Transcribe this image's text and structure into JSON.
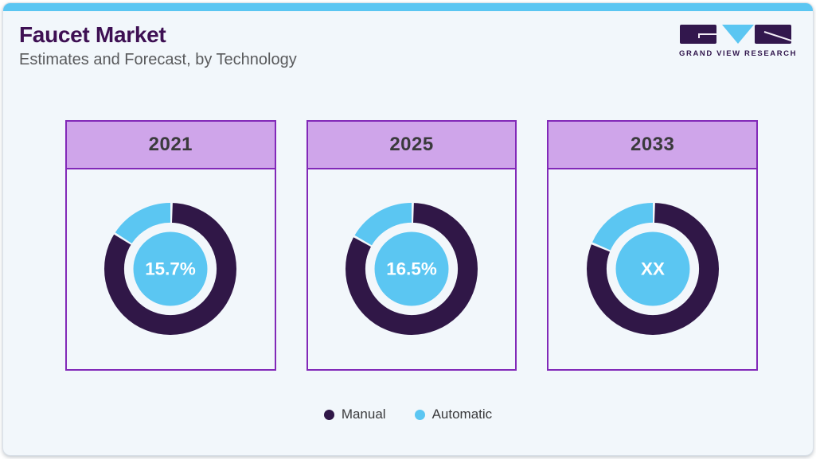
{
  "page": {
    "title": "Faucet Market",
    "subtitle": "Estimates and Forecast, by Technology",
    "brand": {
      "name": "GRAND VIEW RESEARCH"
    }
  },
  "colors": {
    "accent_bar": "#5BC6F2",
    "manual": "#301747",
    "automatic": "#5BC6F2",
    "header_fill": "#CFA5EA",
    "card_border": "#8229B8",
    "title_color": "#3E1053",
    "subtitle_color": "#595A5C",
    "year_color": "#3A3A3C",
    "legend_color": "#3A3A3C",
    "logo_dark": "#32174D",
    "frame_bg": "#F2F7FB",
    "center_label_color": "#FFFFFF"
  },
  "chart_data": {
    "type": "donut",
    "title": "Faucet Market",
    "subtitle": "Estimates and Forecast, by Technology",
    "unit": "percent share of market",
    "legend_position": "bottom",
    "donut_style": {
      "start_angle_deg": -90,
      "direction": "counterclockwise",
      "center_label_shows": "Automatic share"
    },
    "legend": {
      "entries": [
        {
          "label": "Manual",
          "color": "#301747"
        },
        {
          "label": "Automatic",
          "color": "#5BC6F2"
        }
      ]
    },
    "donuts": [
      {
        "year": "2021",
        "center_label": "15.7%",
        "series": {
          "Automatic": 15.7,
          "Manual": 84.3
        }
      },
      {
        "year": "2025",
        "center_label": "16.5%",
        "series": {
          "Automatic": 16.5,
          "Manual": 83.5
        }
      },
      {
        "year": "2033",
        "center_label": "XX",
        "note": "value masked as XX; automatic arc drawn ~18.4% as shown",
        "series": {
          "Automatic": 18.4,
          "Manual": 81.6
        }
      }
    ]
  }
}
